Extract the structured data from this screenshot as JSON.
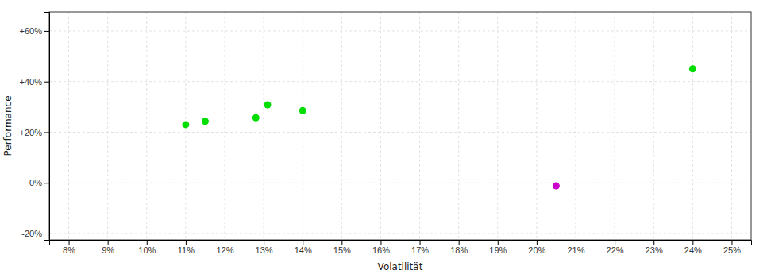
{
  "chart_data": {
    "type": "scatter",
    "xlabel": "Volatilität",
    "ylabel": "Performance",
    "xlim": [
      0.075,
      0.255
    ],
    "ylim": [
      -0.225,
      0.675
    ],
    "xticks": [
      {
        "value": 0.08,
        "label": "8%"
      },
      {
        "value": 0.09,
        "label": "9%"
      },
      {
        "value": 0.1,
        "label": "10%"
      },
      {
        "value": 0.11,
        "label": "11%"
      },
      {
        "value": 0.12,
        "label": "12%"
      },
      {
        "value": 0.13,
        "label": "13%"
      },
      {
        "value": 0.14,
        "label": "14%"
      },
      {
        "value": 0.15,
        "label": "15%"
      },
      {
        "value": 0.16,
        "label": "16%"
      },
      {
        "value": 0.17,
        "label": "17%"
      },
      {
        "value": 0.18,
        "label": "18%"
      },
      {
        "value": 0.19,
        "label": "19%"
      },
      {
        "value": 0.2,
        "label": "20%"
      },
      {
        "value": 0.21,
        "label": "21%"
      },
      {
        "value": 0.22,
        "label": "22%"
      },
      {
        "value": 0.23,
        "label": "23%"
      },
      {
        "value": 0.24,
        "label": "24%"
      },
      {
        "value": 0.25,
        "label": "25%"
      }
    ],
    "yticks": [
      {
        "value": -0.2,
        "label": "-20%"
      },
      {
        "value": 0.0,
        "label": "0%"
      },
      {
        "value": 0.2,
        "label": "+20%"
      },
      {
        "value": 0.4,
        "label": "+40%"
      },
      {
        "value": 0.6,
        "label": "+60%"
      }
    ],
    "grid": true,
    "series": [
      {
        "color": "#00dd00",
        "x": [
          0.11,
          0.115,
          0.128,
          0.131,
          0.14,
          0.24
        ],
        "values": [
          0.23,
          0.243,
          0.257,
          0.308,
          0.285,
          0.45
        ]
      },
      {
        "color": "#cc00cc",
        "x": [
          0.205
        ],
        "values": [
          -0.012
        ]
      }
    ]
  }
}
